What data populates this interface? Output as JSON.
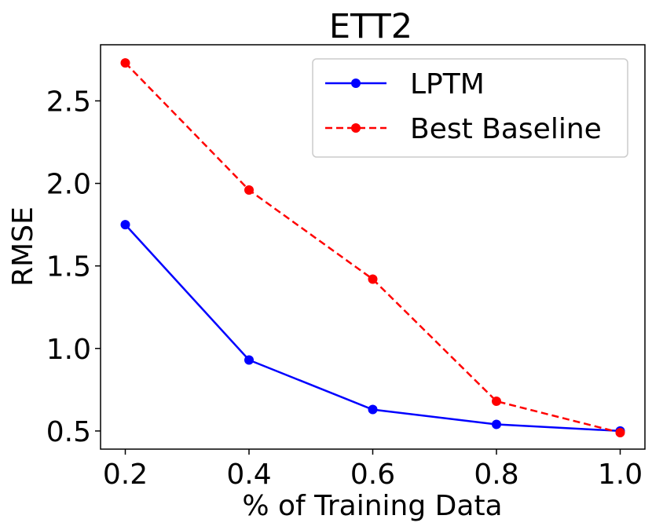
{
  "chart_data": {
    "type": "line",
    "title": "ETT2",
    "xlabel": "% of Training Data",
    "ylabel": "RMSE",
    "x": [
      0.2,
      0.4,
      0.6,
      0.8,
      1.0
    ],
    "x_tick_labels": [
      "0.2",
      "0.4",
      "0.6",
      "0.8",
      "1.0"
    ],
    "y_tick_labels": [
      "0.5",
      "1.0",
      "1.5",
      "2.0",
      "2.5"
    ],
    "y_ticks": [
      0.5,
      1.0,
      1.5,
      2.0,
      2.5
    ],
    "xlim": [
      0.16,
      1.04
    ],
    "ylim": [
      0.39,
      2.84
    ],
    "grid": false,
    "legend_position": "top-right",
    "series": [
      {
        "name": "LPTM",
        "color": "#0000ff",
        "line_style": "solid",
        "marker": "circle",
        "values": [
          1.75,
          0.93,
          0.63,
          0.54,
          0.5
        ]
      },
      {
        "name": "Best Baseline",
        "color": "#ff0000",
        "line_style": "dashed",
        "marker": "circle",
        "values": [
          2.73,
          1.96,
          1.42,
          0.68,
          0.49
        ]
      }
    ]
  }
}
